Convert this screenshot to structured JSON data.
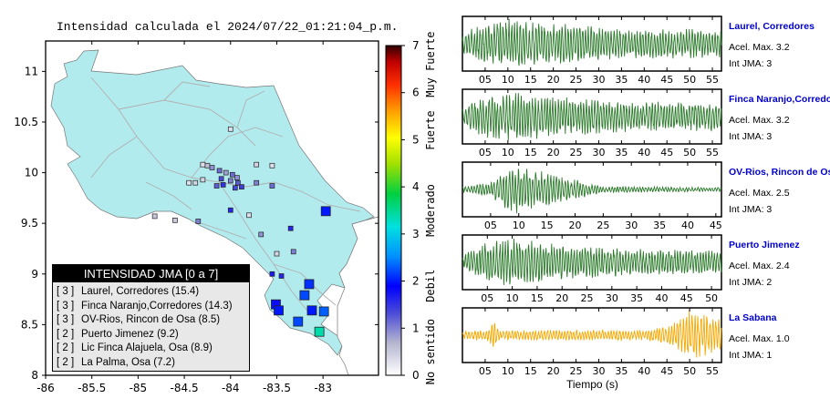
{
  "title": "Intensidad calculada el 2024/07/22_01:21:04_p.m.",
  "chart_data": [
    {
      "type": "scatter",
      "xlim": [
        -86,
        -82.4
      ],
      "ylim": [
        8,
        11.3
      ],
      "x_ticks": [
        "-86",
        "-85.5",
        "-85",
        "-84.5",
        "-84",
        "-83.5",
        "-83"
      ],
      "y_ticks": [
        "8",
        "8.5",
        "9",
        "9.5",
        "10",
        "10.5",
        "11"
      ],
      "colorbar": {
        "range": [
          0,
          7
        ],
        "ticks": [
          "0",
          "1",
          "2",
          "3",
          "4",
          "5",
          "6",
          "7"
        ],
        "labels": [
          "No sentido",
          "Debil",
          "Moderado",
          "Fuerte",
          "Muy Fuerte"
        ]
      },
      "legend": {
        "title": "INTENSIDAD JMA [0 a 7]",
        "entries": [
          {
            "level": "[ 3 ]",
            "name": "Laurel, Corredores (15.4)"
          },
          {
            "level": "[ 3 ]",
            "name": "Finca Naranjo,Corredores (14.3)"
          },
          {
            "level": "[ 3 ]",
            "name": "OV-Rios, Rincon de Osa (8.5)"
          },
          {
            "level": "[ 2 ]",
            "name": "Puerto Jimenez (9.2)"
          },
          {
            "level": "[ 2 ]",
            "name": "Lic Finca Alajuela, Osa (8.9)"
          },
          {
            "level": "[ 2 ]",
            "name": "La Palma, Osa (7.2)"
          }
        ]
      },
      "stations_large": [
        {
          "lon": -82.97,
          "lat": 9.62,
          "int": 2.0
        },
        {
          "lon": -83.15,
          "lat": 8.9,
          "int": 2.1
        },
        {
          "lon": -83.2,
          "lat": 8.79,
          "int": 2.2
        },
        {
          "lon": -83.12,
          "lat": 8.64,
          "int": 2.0
        },
        {
          "lon": -83.51,
          "lat": 8.7,
          "int": 1.8
        },
        {
          "lon": -83.48,
          "lat": 8.64,
          "int": 2.0
        },
        {
          "lon": -83.27,
          "lat": 8.53,
          "int": 2.2
        },
        {
          "lon": -82.99,
          "lat": 8.63,
          "int": 2.3
        },
        {
          "lon": -83.04,
          "lat": 8.43,
          "int": 3.4
        }
      ],
      "stations_small": [
        {
          "lon": -84.0,
          "lat": 10.43,
          "int": 0.3
        },
        {
          "lon": -84.3,
          "lat": 10.08,
          "int": 0.3
        },
        {
          "lon": -84.25,
          "lat": 10.07,
          "int": 0.6
        },
        {
          "lon": -84.2,
          "lat": 10.05,
          "int": 0.9
        },
        {
          "lon": -84.12,
          "lat": 10.02,
          "int": 1.1
        },
        {
          "lon": -84.05,
          "lat": 10.0,
          "int": 0.8
        },
        {
          "lon": -83.98,
          "lat": 9.98,
          "int": 1.1
        },
        {
          "lon": -83.93,
          "lat": 9.95,
          "int": 0.9
        },
        {
          "lon": -84.1,
          "lat": 9.94,
          "int": 1.3
        },
        {
          "lon": -84.0,
          "lat": 9.92,
          "int": 1.0
        },
        {
          "lon": -83.92,
          "lat": 9.9,
          "int": 1.2
        },
        {
          "lon": -84.08,
          "lat": 9.88,
          "int": 1.5
        },
        {
          "lon": -84.3,
          "lat": 9.93,
          "int": 0.4
        },
        {
          "lon": -84.45,
          "lat": 9.9,
          "int": 0.3
        },
        {
          "lon": -84.38,
          "lat": 9.9,
          "int": 0.4
        },
        {
          "lon": -84.15,
          "lat": 9.87,
          "int": 1.2
        },
        {
          "lon": -83.95,
          "lat": 9.85,
          "int": 1.3
        },
        {
          "lon": -83.88,
          "lat": 9.86,
          "int": 1.4
        },
        {
          "lon": -83.72,
          "lat": 9.9,
          "int": 1.0
        },
        {
          "lon": -83.55,
          "lat": 9.87,
          "int": 1.1
        },
        {
          "lon": -83.72,
          "lat": 10.08,
          "int": 0.4
        },
        {
          "lon": -83.55,
          "lat": 10.07,
          "int": 0.3
        },
        {
          "lon": -84.82,
          "lat": 9.57,
          "int": 0.5
        },
        {
          "lon": -84.6,
          "lat": 9.53,
          "int": 0.5
        },
        {
          "lon": -84.35,
          "lat": 9.52,
          "int": 1.0
        },
        {
          "lon": -84.0,
          "lat": 9.63,
          "int": 1.6
        },
        {
          "lon": -83.67,
          "lat": 9.39,
          "int": 0.9
        },
        {
          "lon": -83.8,
          "lat": 9.58,
          "int": 0.3
        },
        {
          "lon": -83.5,
          "lat": 9.2,
          "int": 0.4
        },
        {
          "lon": -83.35,
          "lat": 9.45,
          "int": 1.6
        },
        {
          "lon": -83.55,
          "lat": 9.0,
          "int": 1.7
        },
        {
          "lon": -83.45,
          "lat": 8.98,
          "int": 1.6
        },
        {
          "lon": -83.32,
          "lat": 9.22,
          "int": 1.0
        }
      ]
    },
    {
      "type": "line",
      "xlabel": "Tiempo (s)",
      "panels": [
        {
          "name": "Laurel, Corredores",
          "accel": "Acel. Max. 3.2",
          "intensity": "Int JMA: 3",
          "color": "#2a7a2a",
          "ticks": [
            "05",
            "10",
            "15",
            "20",
            "25",
            "30",
            "35",
            "40",
            "45",
            "50",
            "55"
          ],
          "tmax": 57,
          "env": [
            [
              0,
              0.35
            ],
            [
              3,
              0.7
            ],
            [
              10,
              1.0
            ],
            [
              20,
              0.8
            ],
            [
              35,
              0.6
            ],
            [
              57,
              0.55
            ]
          ],
          "seed": 11
        },
        {
          "name": "Finca Naranjo,Corredores",
          "accel": "Acel. Max. 3.2",
          "intensity": "Int JMA: 3",
          "color": "#2a7a2a",
          "ticks": [
            "05",
            "10",
            "15",
            "20",
            "25",
            "30",
            "35",
            "40",
            "45",
            "50",
            "55"
          ],
          "tmax": 57,
          "env": [
            [
              0,
              0.3
            ],
            [
              3,
              0.7
            ],
            [
              10,
              1.0
            ],
            [
              20,
              0.8
            ],
            [
              35,
              0.6
            ],
            [
              57,
              0.55
            ]
          ],
          "seed": 23
        },
        {
          "name": "OV-Rios, Rincon de Osa",
          "accel": "Acel. Max. 2.5",
          "intensity": "Int JMA: 3",
          "color": "#2a7a2a",
          "ticks": [
            "05",
            "10",
            "15",
            "20",
            "25",
            "30",
            "35",
            "40",
            "45"
          ],
          "tmax": 46,
          "env": [
            [
              0,
              0.1
            ],
            [
              5,
              0.3
            ],
            [
              9,
              1.0
            ],
            [
              16,
              0.6
            ],
            [
              25,
              0.12
            ],
            [
              46,
              0.08
            ]
          ],
          "seed": 37
        },
        {
          "name": "Puerto Jimenez",
          "accel": "Acel. Max. 2.4",
          "intensity": "Int JMA: 2",
          "color": "#2a7a2a",
          "ticks": [
            "05",
            "10",
            "15",
            "20",
            "25",
            "30",
            "35",
            "40",
            "45",
            "50"
          ],
          "tmax": 52,
          "env": [
            [
              0,
              0.3
            ],
            [
              4,
              0.7
            ],
            [
              9,
              1.0
            ],
            [
              18,
              0.75
            ],
            [
              30,
              0.55
            ],
            [
              52,
              0.45
            ]
          ],
          "seed": 51
        },
        {
          "name": "La Sabana",
          "accel": "Acel. Max. 1.0",
          "intensity": "Int JMA: 1",
          "color": "#f5a800",
          "ticks": [
            "05",
            "10",
            "15",
            "20",
            "25",
            "30",
            "35",
            "40",
            "45",
            "50",
            "55"
          ],
          "tmax": 57,
          "env": [
            [
              0,
              0.15
            ],
            [
              5,
              0.2
            ],
            [
              7,
              0.55
            ],
            [
              8,
              0.2
            ],
            [
              40,
              0.2
            ],
            [
              46,
              0.4
            ],
            [
              50,
              1.0
            ],
            [
              55,
              0.8
            ],
            [
              57,
              0.6
            ]
          ],
          "seed": 67
        }
      ]
    }
  ]
}
